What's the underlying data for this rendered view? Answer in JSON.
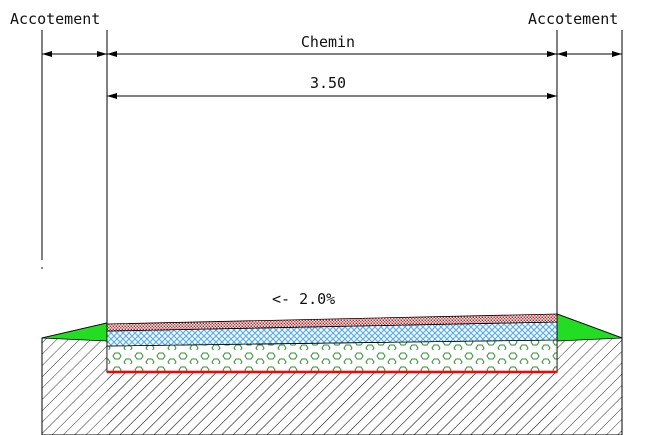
{
  "labels": {
    "left_shoulder": "Accotement",
    "right_shoulder": "Accotement",
    "road": "Chemin",
    "width": "3.50",
    "slope": "<- 2.0%"
  },
  "colors": {
    "shoulder_fill": "#22dd22",
    "top_layer_red": "#e23a3a",
    "base_layer_blue": "#66bbff",
    "subgrade_line": "#ff0000",
    "ground_hatch": "#333333",
    "aggregate_circle": "#2f8f2f"
  }
}
